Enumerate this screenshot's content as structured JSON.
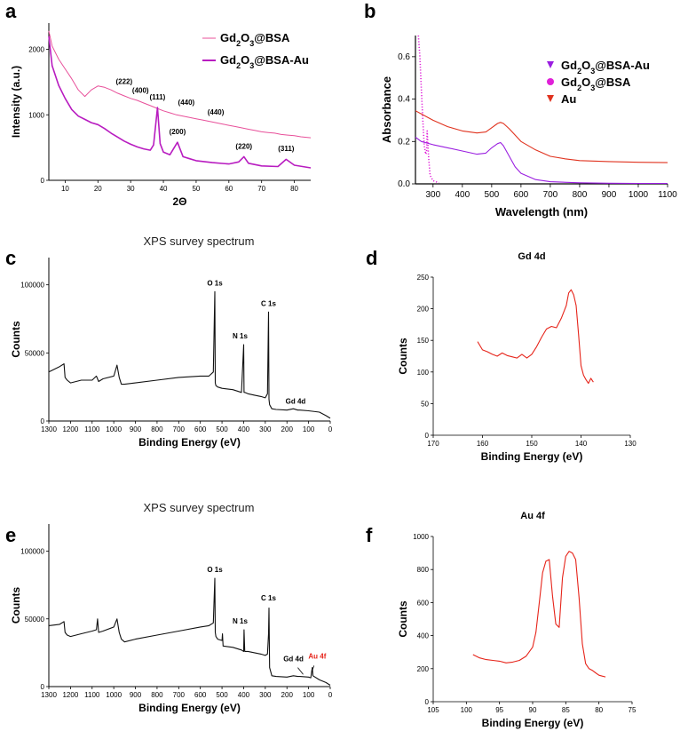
{
  "panel_letters": [
    "a",
    "b",
    "c",
    "d",
    "e",
    "f"
  ],
  "colors": {
    "gd_bsa_xrd": "#e8509a",
    "gd_bsa_au_xrd": "#b81cc0",
    "uv_gd_bsa_au": "#9a1ee0",
    "uv_gd_bsa": "#e020d8",
    "uv_au": "#e0321e",
    "xps_survey": "#111111",
    "xps_core": "#e6241a",
    "au4f_label": "#e6241a"
  },
  "chart_data": [
    {
      "id": "a",
      "type": "line",
      "title": "",
      "xlabel": "2Θ",
      "ylabel": "Intensity (a.u.)",
      "xlim": [
        5,
        85
      ],
      "ylim": [
        0,
        2400
      ],
      "xticks": [
        "10",
        "20",
        "30",
        "40",
        "50",
        "60",
        "70",
        "80"
      ],
      "yticks": [
        "0",
        "1000",
        "2000"
      ],
      "legend": [
        {
          "name": "Gd",
          "sub": "2",
          "mid": "O",
          "sub2": "3",
          "rest": "@BSA"
        },
        {
          "name": "Gd",
          "sub": "2",
          "mid": "O",
          "sub2": "3",
          "rest": "@BSA-Au"
        }
      ],
      "series": [
        {
          "name": "Gd2O3@BSA",
          "color_key": "gd_bsa_xrd",
          "x": [
            5,
            6,
            8,
            10,
            12,
            14,
            16,
            18,
            20,
            22,
            24,
            26,
            28,
            30,
            32,
            34,
            36,
            38,
            40,
            42,
            44,
            46,
            48,
            50,
            52,
            54,
            56,
            58,
            60,
            62,
            64,
            66,
            68,
            70,
            72,
            74,
            76,
            78,
            80,
            82,
            85
          ],
          "y": [
            2280,
            2050,
            1850,
            1700,
            1550,
            1380,
            1280,
            1380,
            1440,
            1420,
            1380,
            1330,
            1290,
            1250,
            1220,
            1180,
            1140,
            1100,
            1060,
            1030,
            1000,
            980,
            960,
            940,
            920,
            900,
            880,
            860,
            840,
            820,
            800,
            780,
            760,
            740,
            730,
            720,
            700,
            690,
            680,
            665,
            650
          ]
        },
        {
          "name": "Gd2O3@BSA-Au",
          "color_key": "gd_bsa_au_xrd",
          "x": [
            5,
            6,
            8,
            10,
            12,
            14,
            16,
            18,
            20,
            22,
            24,
            26,
            28,
            30,
            32,
            34,
            36,
            37,
            38.2,
            39,
            40,
            42,
            44.3,
            46,
            48,
            50,
            55,
            60,
            63,
            64.6,
            66,
            70,
            75,
            77.5,
            80,
            85
          ],
          "y": [
            2200,
            1750,
            1450,
            1250,
            1080,
            980,
            930,
            880,
            850,
            790,
            720,
            660,
            600,
            550,
            510,
            480,
            460,
            540,
            1110,
            560,
            430,
            390,
            580,
            360,
            330,
            300,
            270,
            250,
            280,
            360,
            260,
            220,
            210,
            320,
            230,
            190
          ]
        }
      ],
      "annotations": [
        "(111)",
        "(200)",
        "(220)",
        "(311)",
        "(222)",
        "(400)",
        "(440)",
        "(440)"
      ]
    },
    {
      "id": "b",
      "type": "line",
      "xlabel": "Wavelength (nm)",
      "ylabel": "Absorbance",
      "xlim": [
        240,
        1100
      ],
      "ylim": [
        0,
        0.7
      ],
      "xticks": [
        "300",
        "400",
        "500",
        "600",
        "700",
        "800",
        "900",
        "1000",
        "1100"
      ],
      "yticks": [
        "0.0",
        "0.2",
        "0.4",
        "0.6"
      ],
      "legend": [
        {
          "name": "Gd",
          "sub": "2",
          "mid": "O",
          "sub2": "3",
          "rest": "@BSA-Au",
          "marker": "triangle-down"
        },
        {
          "name": "Gd",
          "sub": "2",
          "mid": "O",
          "sub2": "3",
          "rest": "@BSA",
          "marker": "circle"
        },
        {
          "name": "Au",
          "sub": "",
          "mid": "",
          "sub2": "",
          "rest": "",
          "marker": "triangle-down"
        }
      ],
      "series": [
        {
          "name": "Gd2O3@BSA-Au",
          "color_key": "uv_gd_bsa_au",
          "x": [
            240,
            260,
            300,
            350,
            400,
            450,
            480,
            500,
            520,
            530,
            540,
            560,
            580,
            600,
            650,
            700,
            800,
            900,
            1000,
            1100
          ],
          "y": [
            0.22,
            0.2,
            0.185,
            0.17,
            0.155,
            0.14,
            0.145,
            0.17,
            0.19,
            0.195,
            0.18,
            0.13,
            0.08,
            0.05,
            0.02,
            0.01,
            0.005,
            0.003,
            0.002,
            0.002
          ]
        },
        {
          "name": "Gd2O3@BSA",
          "color_key": "uv_gd_bsa",
          "x": [
            250,
            255,
            260,
            265,
            270,
            275,
            278,
            280,
            285,
            290,
            300,
            320
          ],
          "y": [
            0.7,
            0.6,
            0.45,
            0.3,
            0.18,
            0.14,
            0.15,
            0.25,
            0.12,
            0.04,
            0.015,
            0.005
          ]
        },
        {
          "name": "Au",
          "color_key": "uv_au",
          "x": [
            240,
            300,
            350,
            400,
            450,
            480,
            500,
            520,
            530,
            540,
            560,
            580,
            600,
            650,
            700,
            750,
            800,
            900,
            1000,
            1100
          ],
          "y": [
            0.345,
            0.3,
            0.27,
            0.25,
            0.24,
            0.245,
            0.265,
            0.285,
            0.29,
            0.285,
            0.26,
            0.23,
            0.2,
            0.16,
            0.13,
            0.118,
            0.11,
            0.105,
            0.102,
            0.1
          ]
        }
      ]
    },
    {
      "id": "c",
      "type": "line",
      "title": "XPS survey spectrum",
      "xlabel": "Binding Energy (eV)",
      "ylabel": "Counts",
      "xlim": [
        1300,
        0
      ],
      "ylim": [
        0,
        120000
      ],
      "xticks": [
        "1300",
        "1200",
        "1100",
        "1000",
        "900",
        "800",
        "700",
        "600",
        "500",
        "400",
        "300",
        "200",
        "100",
        "0"
      ],
      "yticks": [
        "0",
        "50000",
        "100000"
      ],
      "series": [
        {
          "name": "survey",
          "color_key": "xps_survey",
          "x": [
            1300,
            1250,
            1230,
            1225,
            1215,
            1200,
            1150,
            1100,
            1080,
            1070,
            1050,
            1000,
            985,
            975,
            965,
            950,
            900,
            800,
            700,
            600,
            560,
            540,
            533,
            531,
            528,
            520,
            500,
            450,
            410,
            400,
            398,
            395,
            380,
            350,
            320,
            300,
            290,
            285,
            283,
            280,
            270,
            250,
            200,
            170,
            150,
            140,
            100,
            50,
            20,
            0
          ],
          "y": [
            36000,
            40000,
            42000,
            32000,
            30000,
            28000,
            30000,
            30000,
            33000,
            29000,
            31000,
            33000,
            41000,
            32000,
            27000,
            27000,
            28000,
            30000,
            32000,
            33000,
            33000,
            36000,
            95000,
            28000,
            26000,
            25000,
            24000,
            23000,
            21000,
            56000,
            21000,
            21000,
            20000,
            19000,
            18000,
            17000,
            20000,
            80000,
            16000,
            12000,
            9000,
            8500,
            8000,
            9000,
            8000,
            8000,
            7500,
            6500,
            4000,
            2000
          ]
        }
      ],
      "annotations": [
        "O 1s",
        "N 1s",
        "C 1s",
        "Gd 4d"
      ]
    },
    {
      "id": "d",
      "type": "line",
      "title": "Gd 4d",
      "xlabel": "Binding Energy (eV)",
      "ylabel": "Counts",
      "xlim": [
        170,
        130
      ],
      "ylim": [
        0,
        250
      ],
      "xticks": [
        "170",
        "160",
        "150",
        "140",
        "130"
      ],
      "yticks": [
        "0",
        "50",
        "100",
        "150",
        "200",
        "250"
      ],
      "series": [
        {
          "name": "Gd 4d",
          "color_key": "xps_core",
          "x": [
            161,
            160,
            159,
            158,
            157,
            156,
            155,
            154,
            153,
            152,
            151,
            150,
            149,
            148,
            147,
            146,
            145,
            144,
            143,
            142.5,
            142,
            141.5,
            141,
            140.5,
            140,
            139.5,
            139,
            138.5,
            138,
            137.5
          ],
          "y": [
            148,
            135,
            132,
            128,
            125,
            130,
            126,
            124,
            122,
            128,
            122,
            128,
            140,
            155,
            168,
            172,
            170,
            185,
            205,
            225,
            230,
            222,
            205,
            160,
            110,
            95,
            88,
            82,
            90,
            84
          ]
        }
      ]
    },
    {
      "id": "e",
      "type": "line",
      "title": "XPS survey spectrum",
      "xlabel": "Binding Energy (eV)",
      "ylabel": "Counts",
      "xlim": [
        1300,
        0
      ],
      "ylim": [
        0,
        120000
      ],
      "xticks": [
        "1300",
        "1200",
        "1100",
        "1000",
        "900",
        "800",
        "700",
        "600",
        "500",
        "400",
        "300",
        "200",
        "100",
        "0"
      ],
      "yticks": [
        "0",
        "50000",
        "100000"
      ],
      "series": [
        {
          "name": "survey",
          "color_key": "xps_survey",
          "x": [
            1300,
            1250,
            1230,
            1225,
            1215,
            1200,
            1150,
            1100,
            1080,
            1075,
            1070,
            1050,
            1000,
            985,
            975,
            965,
            950,
            900,
            800,
            700,
            600,
            560,
            540,
            533,
            531,
            528,
            520,
            500,
            498,
            495,
            450,
            410,
            400,
            398,
            395,
            380,
            350,
            320,
            300,
            290,
            285,
            283,
            280,
            270,
            250,
            200,
            170,
            150,
            140,
            100,
            90,
            85,
            83,
            80,
            50,
            20,
            0
          ],
          "y": [
            45000,
            46000,
            48000,
            40000,
            38000,
            37000,
            39000,
            41000,
            42000,
            50000,
            40000,
            41000,
            44000,
            50000,
            40000,
            35000,
            33000,
            35000,
            38000,
            41000,
            44000,
            45000,
            47000,
            80000,
            40000,
            37000,
            35000,
            34000,
            39000,
            30000,
            29000,
            27000,
            26000,
            42000,
            26000,
            26000,
            25000,
            24000,
            23000,
            24000,
            39000,
            58000,
            14000,
            8000,
            7500,
            7000,
            8000,
            7500,
            7500,
            7000,
            6500,
            12000,
            14000,
            8000,
            5000,
            3000,
            1000
          ]
        }
      ],
      "annotations": [
        "O 1s",
        "N 1s",
        "C 1s",
        "Gd 4d",
        "Au 4f"
      ]
    },
    {
      "id": "f",
      "type": "line",
      "title": "Au 4f",
      "xlabel": "Binding Energy (eV)",
      "ylabel": "Counts",
      "xlim": [
        105,
        75
      ],
      "ylim": [
        0,
        1000
      ],
      "xticks": [
        "105",
        "100",
        "95",
        "90",
        "85",
        "80",
        "75"
      ],
      "yticks": [
        "0",
        "200",
        "400",
        "600",
        "800",
        "1000"
      ],
      "series": [
        {
          "name": "Au 4f",
          "color_key": "xps_core",
          "x": [
            99,
            98,
            97,
            96,
            95,
            94,
            93,
            92,
            91,
            90,
            89.5,
            89,
            88.5,
            88,
            87.5,
            87,
            86.5,
            86,
            85.5,
            85,
            84.5,
            84,
            83.5,
            83,
            82.5,
            82,
            81.5,
            81,
            80.5,
            80,
            79.5,
            79
          ],
          "y": [
            285,
            265,
            255,
            250,
            245,
            235,
            240,
            250,
            275,
            330,
            420,
            600,
            780,
            850,
            860,
            640,
            470,
            450,
            750,
            880,
            910,
            900,
            860,
            630,
            350,
            230,
            200,
            190,
            175,
            160,
            155,
            150
          ]
        }
      ]
    }
  ]
}
